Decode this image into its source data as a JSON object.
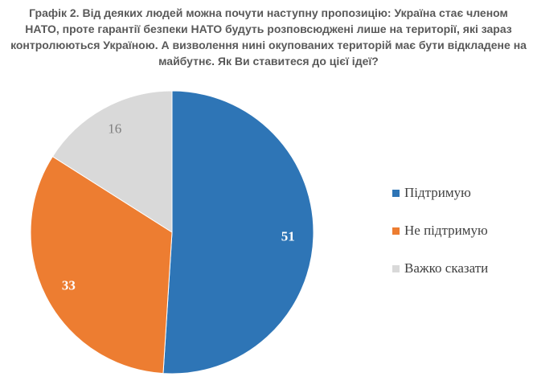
{
  "title_lines": [
    "Графік 2. Від деяких людей можна почути наступну пропозицію: Україна стає членом",
    "НАТО, проте гарантії безпеки НАТО будуть розповсюджені лише на території, які зараз",
    "контролюються Україною. А визволення нині окупованих територій має бути відкладене на",
    "майбутнє. Як Ви ставитеся до цієї ідеї?"
  ],
  "chart_data": {
    "type": "pie",
    "title": "Графік 2. Від деяких людей можна почути наступну пропозицію: Україна стає членом НАТО, проте гарантії безпеки НАТО будуть розповсюджені лише на території, які зараз контролюються Україною. А визволення нині окупованих територій має бути відкладене на майбутнє. Як Ви ставитеся до цієї ідеї?",
    "categories": [
      "Підтримую",
      "Не підтримую",
      "Важко сказати"
    ],
    "values": [
      51,
      33,
      16
    ],
    "data_labels": [
      "51",
      "33",
      "16"
    ],
    "colors": [
      "#2E75B6",
      "#ED7D31",
      "#D9D9D9"
    ],
    "label_colors": [
      "#ffffff",
      "#ffffff",
      "#7F7F7F"
    ],
    "start": "top, clockwise",
    "legend_position": "right"
  }
}
